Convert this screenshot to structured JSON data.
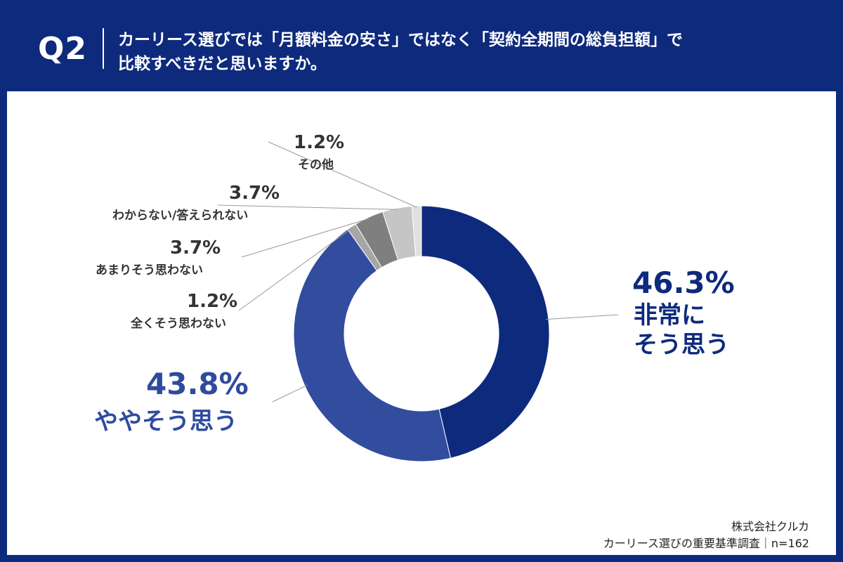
{
  "header": {
    "qnum": "Q2",
    "title_line1": "カーリース選びでは「月額料金の安さ」ではなく「契約全期間の総負担額」で",
    "title_line2": "比較すべきだと思いますか。"
  },
  "chart_data": {
    "type": "pie",
    "donut": true,
    "slices": [
      {
        "pct_label": "46.3%",
        "name": "非常にそう思う",
        "name_line1": "非常に",
        "name_line2": "そう思う",
        "value": 46.3,
        "color": "#0e2a7d"
      },
      {
        "pct_label": "43.8%",
        "name": "ややそう思う",
        "value": 43.8,
        "color": "#324c9e"
      },
      {
        "pct_label": "1.2%",
        "name": "全くそう思わない",
        "value": 1.2,
        "color": "#a6a6a6"
      },
      {
        "pct_label": "3.7%",
        "name": "あまりそう思わない",
        "value": 3.7,
        "color": "#7f7f7f"
      },
      {
        "pct_label": "3.7%",
        "name": "わからない/答えられない",
        "value": 3.7,
        "color": "#c5c5c5"
      },
      {
        "pct_label": "1.2%",
        "name": "その他",
        "value": 1.2,
        "color": "#e0e0e2"
      }
    ]
  },
  "footer": {
    "company": "株式会社クルカ",
    "survey": "カーリース選びの重要基準調査｜n=162"
  }
}
